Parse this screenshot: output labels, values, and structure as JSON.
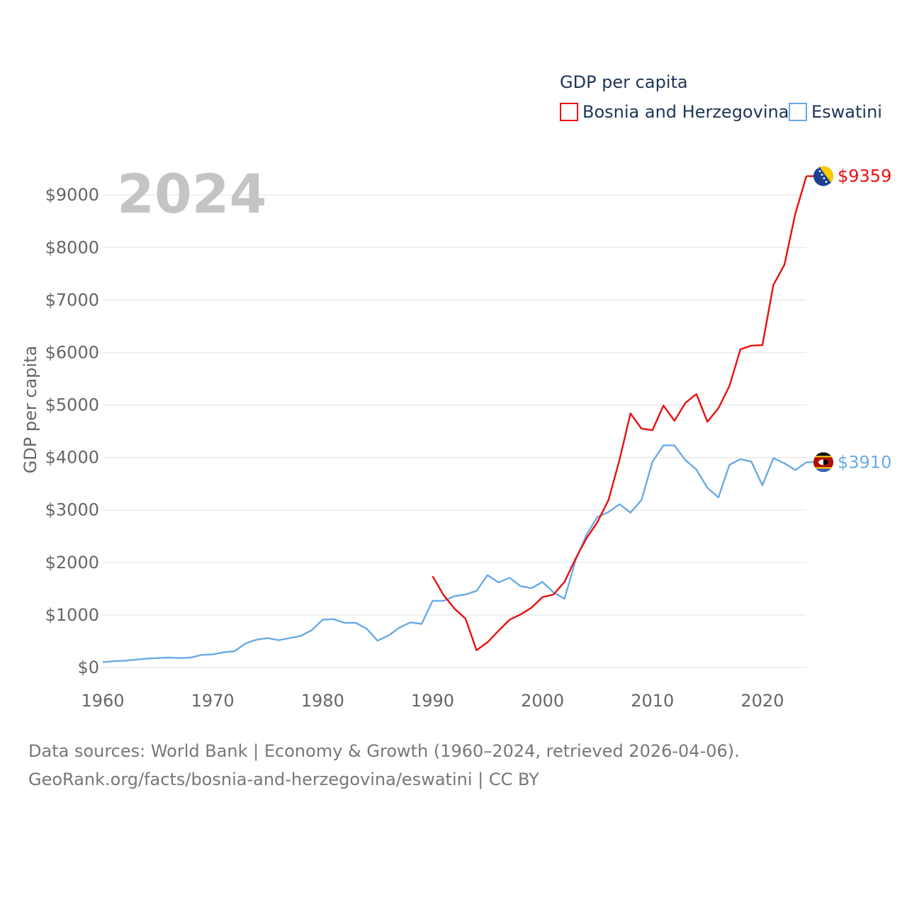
{
  "chart_data": {
    "type": "line",
    "legend_title": "GDP per capita",
    "ylabel": "GDP per capita",
    "xlabel": "",
    "year_label": "2024",
    "xlim": [
      1960,
      2024
    ],
    "ylim": [
      0,
      9500
    ],
    "x_ticks": [
      1960,
      1970,
      1980,
      1990,
      2000,
      2010,
      2020
    ],
    "y_ticks": [
      0,
      1000,
      2000,
      3000,
      4000,
      5000,
      6000,
      7000,
      8000,
      9000
    ],
    "y_tick_labels": [
      "$0",
      "$1000",
      "$2000",
      "$3000",
      "$4000",
      "$5000",
      "$6000",
      "$7000",
      "$8000",
      "$9000"
    ],
    "grid": true,
    "legend_position": "top-right",
    "series": [
      {
        "name": "Bosnia and Herzegovina",
        "color": "#e8100f",
        "end_label": "$9359",
        "flag": "bosnia-flag",
        "x": [
          1990,
          1991,
          1992,
          1993,
          1994,
          1995,
          1996,
          1997,
          1998,
          1999,
          2000,
          2001,
          2002,
          2003,
          2004,
          2005,
          2006,
          2007,
          2008,
          2009,
          2010,
          2011,
          2012,
          2013,
          2014,
          2015,
          2016,
          2017,
          2018,
          2019,
          2020,
          2021,
          2022,
          2023,
          2024
        ],
        "values": [
          1740,
          1380,
          1120,
          930,
          330,
          480,
          700,
          910,
          1010,
          1140,
          1340,
          1390,
          1630,
          2070,
          2460,
          2770,
          3190,
          3950,
          4840,
          4550,
          4520,
          4990,
          4700,
          5040,
          5210,
          4680,
          4940,
          5360,
          6060,
          6130,
          6140,
          7290,
          7670,
          8650,
          9359
        ]
      },
      {
        "name": "Eswatini",
        "color": "#6aaae6",
        "end_label": "$3910",
        "flag": "eswatini-flag",
        "x": [
          1960,
          1961,
          1962,
          1963,
          1964,
          1965,
          1966,
          1967,
          1968,
          1969,
          1970,
          1971,
          1972,
          1973,
          1974,
          1975,
          1976,
          1977,
          1978,
          1979,
          1980,
          1981,
          1982,
          1983,
          1984,
          1985,
          1986,
          1987,
          1988,
          1989,
          1990,
          1991,
          1992,
          1993,
          1994,
          1995,
          1996,
          1997,
          1998,
          1999,
          2000,
          2001,
          2002,
          2003,
          2004,
          2005,
          2006,
          2007,
          2008,
          2009,
          2010,
          2011,
          2012,
          2013,
          2014,
          2015,
          2016,
          2017,
          2018,
          2019,
          2020,
          2021,
          2022,
          2023,
          2024
        ],
        "values": [
          100,
          120,
          130,
          150,
          170,
          180,
          190,
          180,
          190,
          240,
          250,
          290,
          310,
          460,
          530,
          560,
          520,
          560,
          600,
          710,
          910,
          920,
          850,
          850,
          740,
          510,
          610,
          760,
          860,
          830,
          1270,
          1270,
          1360,
          1390,
          1460,
          1760,
          1620,
          1710,
          1550,
          1510,
          1630,
          1430,
          1310,
          2040,
          2530,
          2870,
          2960,
          3110,
          2950,
          3190,
          3920,
          4230,
          4230,
          3950,
          3770,
          3420,
          3240,
          3860,
          3970,
          3920,
          3470,
          3990,
          3890,
          3760,
          3910
        ]
      }
    ]
  },
  "source": {
    "line1": "Data sources: World Bank | Economy & Growth (1960–2024, retrieved 2026-04-06).",
    "line2": "GeoRank.org/facts/bosnia-and-herzegovina/eswatini | CC BY"
  }
}
